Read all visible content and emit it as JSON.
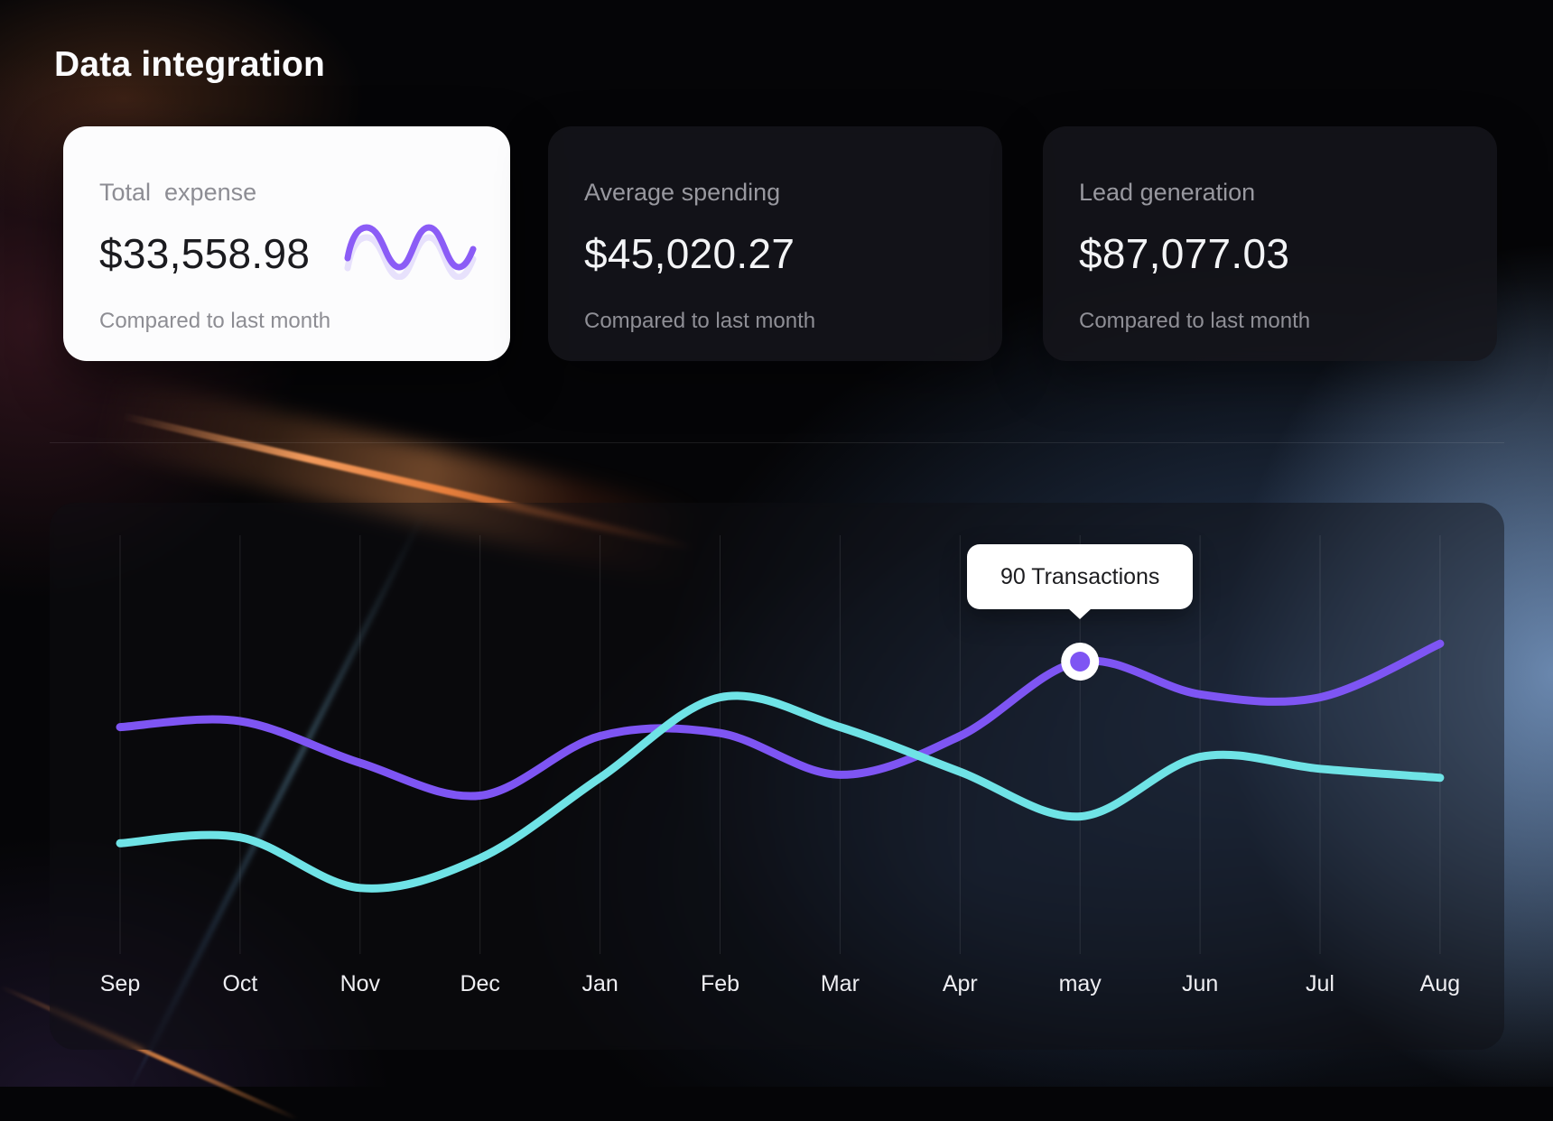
{
  "page": {
    "title": "Data integration"
  },
  "cards": [
    {
      "label": "Total  expense",
      "value": "$33,558.98",
      "subtext": "Compared to last month",
      "variant": "light",
      "sparkline_icon": "wave-sparkline-icon"
    },
    {
      "label": "Average spending",
      "value": "$45,020.27",
      "subtext": "Compared to last month",
      "variant": "dark"
    },
    {
      "label": "Lead generation",
      "value": "$87,077.03",
      "subtext": "Compared to last month",
      "variant": "dark"
    }
  ],
  "chart_data": {
    "type": "line",
    "title": "",
    "categories": [
      "Sep",
      "Oct",
      "Nov",
      "Dec",
      "Jan",
      "Feb",
      "Mar",
      "Apr",
      "may",
      "Jun",
      "Jul",
      "Aug"
    ],
    "series": [
      {
        "name": "transactions-purple",
        "color": "#7e55f3",
        "values": [
          68,
          70,
          56,
          45,
          65,
          66,
          52,
          65,
          90,
          79,
          78,
          96
        ]
      },
      {
        "name": "transactions-cyan",
        "color": "#6fe3e6",
        "values": [
          29,
          31,
          14,
          24,
          51,
          78,
          68,
          53,
          38,
          58,
          54,
          51
        ]
      }
    ],
    "unit": "Transactions",
    "ylim": [
      0,
      120
    ],
    "grid": "vertical-only",
    "y_axis_visible": false,
    "legend": "none",
    "tooltip": {
      "text": "90 Transactions",
      "category": "may",
      "series": "transactions-purple",
      "value": 90
    }
  },
  "colors": {
    "accent_purple": "#7e55f3",
    "accent_cyan": "#6fe3e6",
    "tooltip_bg": "#ffffff",
    "card_light_bg": "#fcfcfd",
    "card_dark_bg": "#16161b",
    "background": "#050507"
  }
}
